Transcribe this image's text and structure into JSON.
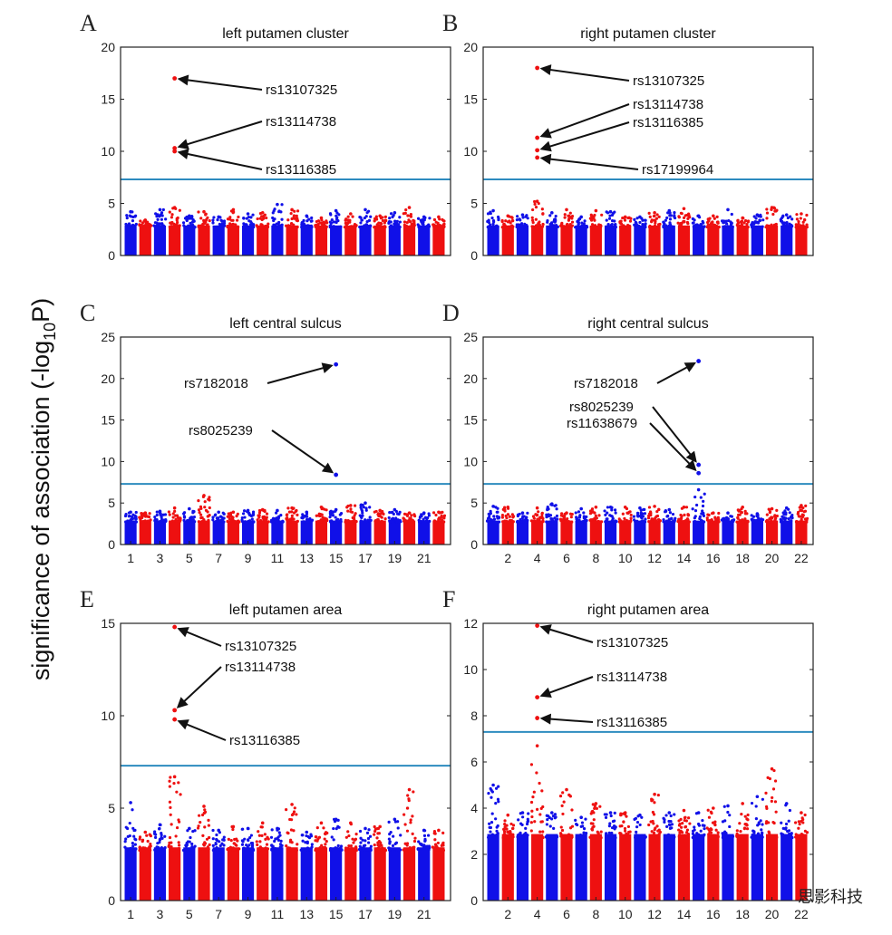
{
  "figure": {
    "ylabel": "significance of association (-log",
    "ylabel_sub": "10",
    "ylabel_tail": "P)",
    "threshold": 7.3,
    "colors": {
      "blue": "#1010e8",
      "red": "#ee1010",
      "threshold": "#2d8bbf"
    },
    "watermark": "思影科技"
  },
  "chart_data": [
    {
      "letter": "A",
      "title": "left putamen cluster",
      "type": "scatter",
      "ylim": [
        0,
        20
      ],
      "yticks": [
        0,
        5,
        10,
        15,
        20
      ],
      "xticks": [],
      "chromosomes": 22,
      "base_heights": [
        4.2,
        3.4,
        4.4,
        4.6,
        3.8,
        4.2,
        3.7,
        4.4,
        4.0,
        4.1,
        4.9,
        4.4,
        3.8,
        3.6,
        4.3,
        4.0,
        4.4,
        3.8,
        4.1,
        4.6,
        3.7,
        3.7
      ],
      "highlights": [
        {
          "snp": "rs13107325",
          "chr": 4,
          "y": 17.0
        },
        {
          "snp": "rs13114738",
          "chr": 4,
          "y": 10.3
        },
        {
          "snp": "rs13116385",
          "chr": 4,
          "y": 10.0
        }
      ]
    },
    {
      "letter": "B",
      "title": "right putamen cluster",
      "type": "scatter",
      "ylim": [
        0,
        20
      ],
      "yticks": [
        0,
        5,
        10,
        15,
        20
      ],
      "xticks": [],
      "chromosomes": 22,
      "base_heights": [
        4.3,
        3.8,
        3.9,
        5.2,
        4.1,
        4.4,
        3.7,
        4.3,
        4.2,
        3.7,
        3.7,
        4.1,
        4.3,
        4.5,
        3.8,
        3.8,
        4.4,
        3.6,
        3.9,
        4.6,
        3.9,
        4.0
      ],
      "highlights": [
        {
          "snp": "rs13107325",
          "chr": 4,
          "y": 18.0
        },
        {
          "snp": "rs13114738",
          "chr": 4,
          "y": 11.3
        },
        {
          "snp": "rs13116385",
          "chr": 4,
          "y": 10.1
        },
        {
          "snp": "rs17199964",
          "chr": 4,
          "y": 9.4
        }
      ]
    },
    {
      "letter": "C",
      "title": "left central sulcus",
      "type": "scatter",
      "ylim": [
        0,
        25
      ],
      "yticks": [
        0,
        5,
        10,
        15,
        20,
        25
      ],
      "xticks": [
        "1",
        "3",
        "5",
        "7",
        "9",
        "11",
        "13",
        "15",
        "17",
        "19",
        "21"
      ],
      "chromosomes": 22,
      "base_heights": [
        3.9,
        3.8,
        4.0,
        4.4,
        4.3,
        5.9,
        3.9,
        3.9,
        4.1,
        4.2,
        4.1,
        4.4,
        3.9,
        4.5,
        4.2,
        4.7,
        5.0,
        4.1,
        4.2,
        3.8,
        3.8,
        3.9
      ],
      "highlights": [
        {
          "snp": "rs7182018",
          "chr": 15,
          "y": 21.7
        },
        {
          "snp": "rs8025239",
          "chr": 15,
          "y": 8.4
        }
      ]
    },
    {
      "letter": "D",
      "title": "right central sulcus",
      "type": "scatter",
      "ylim": [
        0,
        25
      ],
      "yticks": [
        0,
        5,
        10,
        15,
        20,
        25
      ],
      "xticks": [
        "2",
        "4",
        "6",
        "8",
        "10",
        "12",
        "14",
        "16",
        "18",
        "20",
        "22"
      ],
      "chromosomes": 22,
      "base_heights": [
        4.6,
        4.5,
        3.8,
        4.4,
        4.9,
        3.8,
        4.3,
        4.5,
        4.5,
        4.5,
        4.4,
        4.6,
        4.2,
        4.5,
        6.6,
        3.8,
        3.8,
        4.5,
        3.7,
        4.3,
        4.4,
        4.7
      ],
      "highlights": [
        {
          "snp": "rs7182018",
          "chr": 15,
          "y": 22.1
        },
        {
          "snp": "rs8025239",
          "chr": 15,
          "y": 9.6
        },
        {
          "snp": "rs11638679",
          "chr": 15,
          "y": 8.6
        }
      ]
    },
    {
      "letter": "E",
      "title": "left putamen area",
      "type": "scatter",
      "ylim": [
        0,
        15
      ],
      "yticks": [
        0,
        5,
        10,
        15
      ],
      "xticks": [
        "1",
        "3",
        "5",
        "7",
        "9",
        "11",
        "13",
        "15",
        "17",
        "19",
        "21"
      ],
      "chromosomes": 22,
      "base_heights": [
        5.3,
        3.7,
        4.1,
        6.7,
        3.9,
        5.1,
        3.8,
        4.0,
        3.9,
        4.2,
        3.9,
        5.2,
        3.7,
        4.2,
        4.4,
        4.2,
        3.9,
        4.0,
        4.4,
        6.0,
        3.8,
        3.8
      ],
      "highlights": [
        {
          "snp": "rs13107325",
          "chr": 4,
          "y": 14.8
        },
        {
          "snp": "rs13114738",
          "chr": 4,
          "y": 10.3
        },
        {
          "snp": "rs13116385",
          "chr": 4,
          "y": 9.8
        }
      ]
    },
    {
      "letter": "F",
      "title": "right putamen area",
      "type": "scatter",
      "ylim": [
        0,
        12
      ],
      "yticks": [
        0,
        2,
        4,
        6,
        8,
        10,
        12
      ],
      "xticks": [
        "2",
        "4",
        "6",
        "8",
        "10",
        "12",
        "14",
        "16",
        "18",
        "20",
        "22"
      ],
      "chromosomes": 22,
      "base_heights": [
        5.0,
        3.7,
        3.8,
        6.7,
        3.8,
        4.8,
        3.6,
        4.2,
        3.8,
        3.8,
        3.7,
        4.6,
        3.8,
        3.9,
        3.8,
        4.0,
        4.1,
        4.2,
        4.5,
        5.7,
        4.2,
        3.8
      ],
      "highlights": [
        {
          "snp": "rs13107325",
          "chr": 4,
          "y": 11.9
        },
        {
          "snp": "rs13114738",
          "chr": 4,
          "y": 8.8
        },
        {
          "snp": "rs13116385",
          "chr": 4,
          "y": 7.9
        }
      ]
    }
  ]
}
